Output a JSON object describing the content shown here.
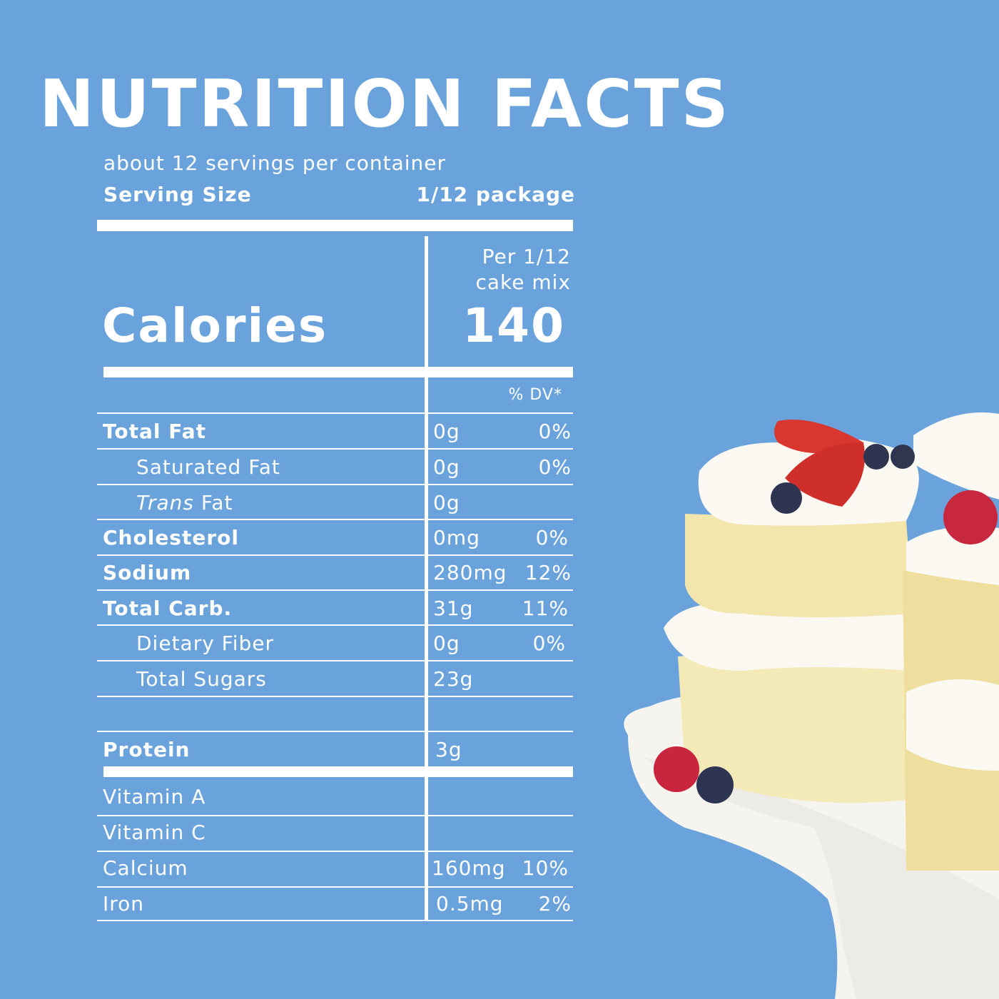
{
  "title": "NUTRITION  FACTS",
  "servings_per_container": "about 12 servings per container",
  "serving_size": {
    "label": "Serving Size",
    "value": "1/12 package"
  },
  "per_label": {
    "line1": "Per 1/12",
    "line2": "cake mix"
  },
  "calories": {
    "label": "Calories",
    "value": "140"
  },
  "dv_header": "% DV*",
  "nutrients": [
    {
      "name": "Total Fat",
      "amount": "0g",
      "dv": "0%"
    },
    {
      "name": "Saturated Fat",
      "amount": "0g",
      "dv": "0%"
    },
    {
      "name_italic": "Trans",
      "name_rest": " Fat",
      "amount": "0g",
      "dv": ""
    },
    {
      "name": "Cholesterol",
      "amount": "0mg",
      "dv": "0%"
    },
    {
      "name": "Sodium",
      "amount": "280mg",
      "dv": "12%"
    },
    {
      "name": "Total Carb.",
      "amount": "31g",
      "dv": "11%"
    },
    {
      "name": "Dietary Fiber",
      "amount": "0g",
      "dv": "0%"
    },
    {
      "name": "Total Sugars",
      "amount": "23g",
      "dv": ""
    },
    {
      "name": "",
      "amount": "",
      "dv": ""
    },
    {
      "name": "Protein",
      "amount": "3g",
      "dv": ""
    }
  ],
  "vitamins": [
    {
      "name": "Vitamin A",
      "amount": "",
      "dv": ""
    },
    {
      "name": "Vitamin C",
      "amount": "",
      "dv": ""
    },
    {
      "name": "Calcium",
      "amount": "160mg",
      "dv": "10%"
    },
    {
      "name": "Iron",
      "amount": "0.5mg",
      "dv": "2%"
    }
  ],
  "colors": {
    "background": "#6aa3dc",
    "text": "#ffffff",
    "accent": "#3fd0e0"
  },
  "photo": "cake-with-berries-on-stand"
}
